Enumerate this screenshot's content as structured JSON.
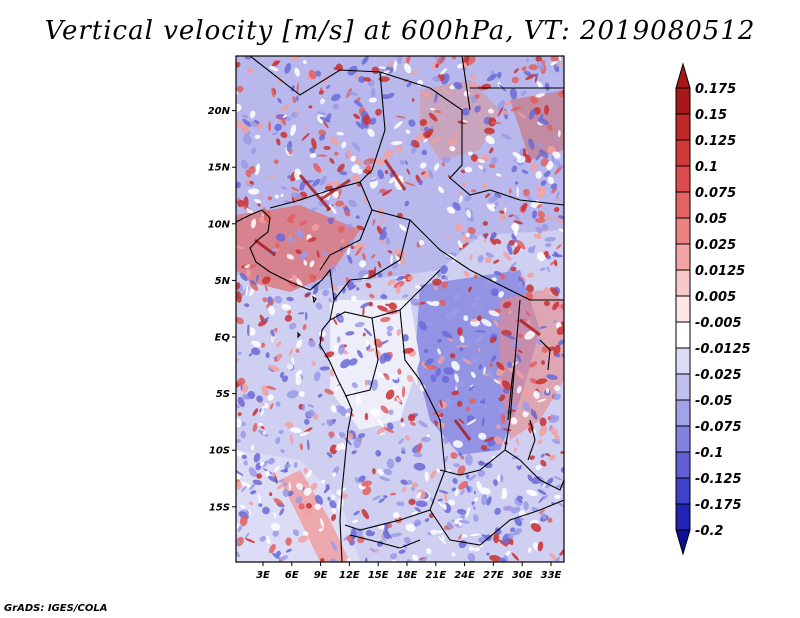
{
  "title": "Vertical velocity [m/s] at 600hPa, VT: 2019080512",
  "credit": "GrADS: IGES/COLA",
  "y_ticks": [
    {
      "label": "20N",
      "lat": 20
    },
    {
      "label": "15N",
      "lat": 15
    },
    {
      "label": "10N",
      "lat": 10
    },
    {
      "label": "5N",
      "lat": 5
    },
    {
      "label": "EQ",
      "lat": 0
    },
    {
      "label": "5S",
      "lat": -5
    },
    {
      "label": "10S",
      "lat": -10
    },
    {
      "label": "15S",
      "lat": -15
    }
  ],
  "x_ticks": [
    {
      "label": "3E",
      "lon": 3
    },
    {
      "label": "6E",
      "lon": 6
    },
    {
      "label": "9E",
      "lon": 9
    },
    {
      "label": "12E",
      "lon": 12
    },
    {
      "label": "15E",
      "lon": 15
    },
    {
      "label": "18E",
      "lon": 18
    },
    {
      "label": "21E",
      "lon": 21
    },
    {
      "label": "24E",
      "lon": 24
    },
    {
      "label": "27E",
      "lon": 27
    },
    {
      "label": "30E",
      "lon": 30
    },
    {
      "label": "33E",
      "lon": 33
    }
  ],
  "colorbar": {
    "labels": [
      "0.175",
      "0.15",
      "0.125",
      "0.1",
      "0.075",
      "0.05",
      "0.025",
      "0.0125",
      "0.005",
      "-0.005",
      "-0.0125",
      "-0.025",
      "-0.05",
      "-0.075",
      "-0.1",
      "-0.125",
      "-0.175",
      "-0.2"
    ],
    "colors": [
      "#a81818",
      "#c02828",
      "#d03838",
      "#dc4c4c",
      "#e46464",
      "#ec8282",
      "#f4a4a4",
      "#f8c8c8",
      "#fce6e6",
      "#ffffff",
      "#dcdcf6",
      "#c0c0f0",
      "#a2a2ea",
      "#8282e0",
      "#6060d4",
      "#4040c8",
      "#2222b4",
      "#0e0e96"
    ]
  }
}
